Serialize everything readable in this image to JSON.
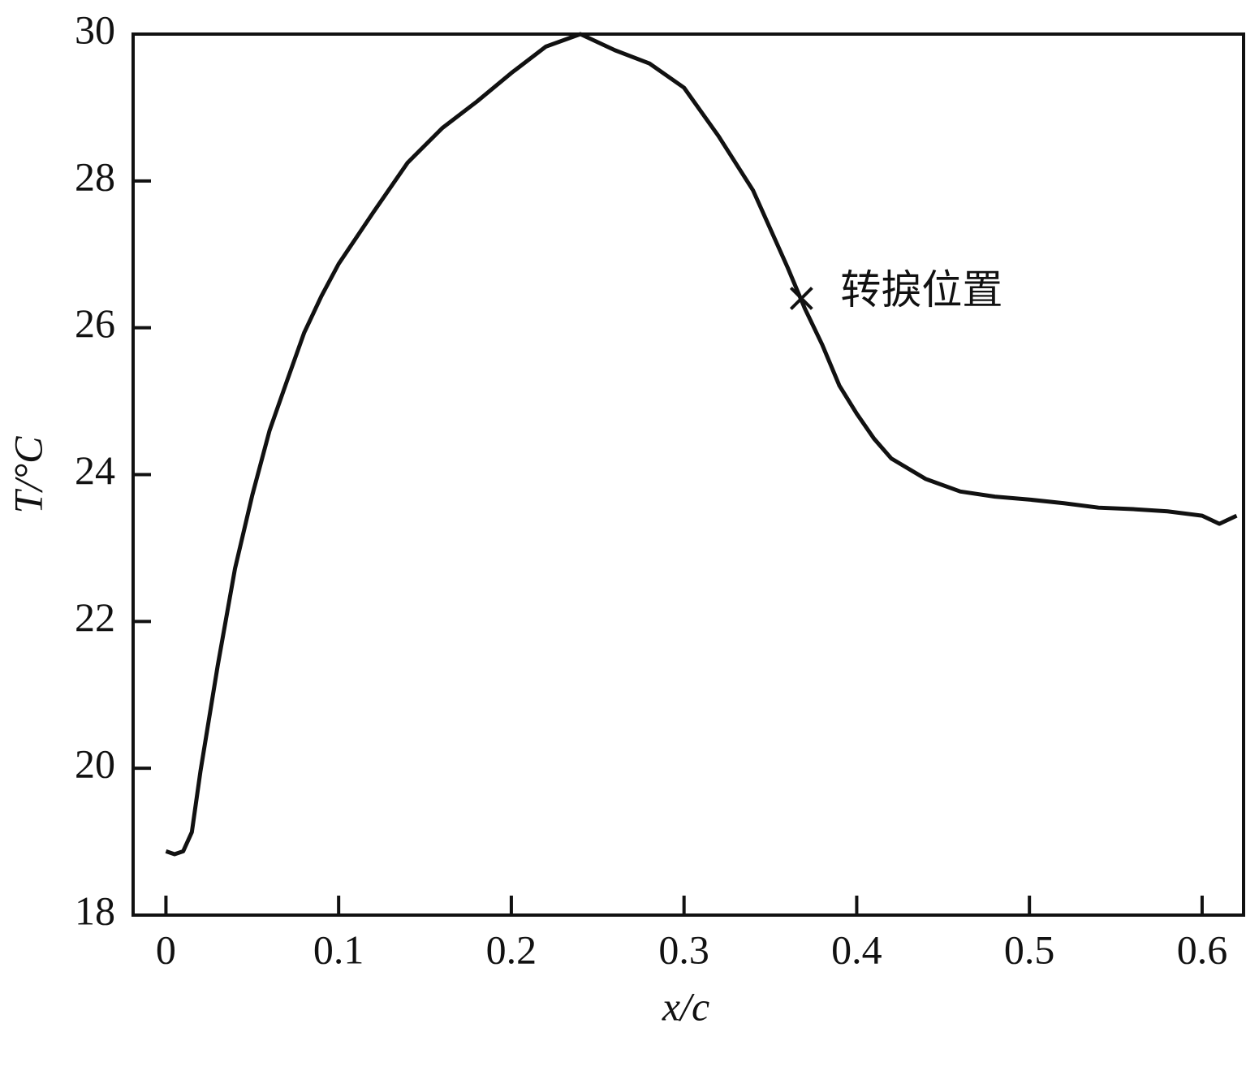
{
  "chart_data": {
    "type": "line",
    "xlabel": "x/c",
    "ylabel": "T/°C",
    "x": [
      0,
      0.005,
      0.01,
      0.015,
      0.02,
      0.03,
      0.04,
      0.05,
      0.06,
      0.07,
      0.08,
      0.09,
      0.1,
      0.12,
      0.14,
      0.16,
      0.18,
      0.2,
      0.22,
      0.24,
      0.26,
      0.28,
      0.3,
      0.32,
      0.34,
      0.36,
      0.37,
      0.38,
      0.39,
      0.4,
      0.41,
      0.42,
      0.44,
      0.46,
      0.48,
      0.5,
      0.52,
      0.54,
      0.56,
      0.58,
      0.6,
      0.61,
      0.62
    ],
    "values": [
      18.87,
      18.83,
      18.87,
      19.13,
      19.96,
      21.4,
      22.72,
      23.72,
      24.6,
      25.27,
      25.93,
      26.43,
      26.87,
      27.57,
      28.25,
      28.72,
      29.08,
      29.47,
      29.83,
      30,
      29.78,
      29.6,
      29.27,
      28.61,
      27.87,
      26.82,
      26.26,
      25.77,
      25.21,
      24.83,
      24.49,
      24.22,
      23.94,
      23.77,
      23.7,
      23.66,
      23.61,
      23.55,
      23.53,
      23.5,
      23.44,
      23.33,
      23.44
    ],
    "color": "#111111",
    "xlim": [
      -0.019,
      0.624
    ],
    "ylim": [
      18,
      30
    ],
    "xticks": [
      0,
      0.1,
      0.2,
      0.3,
      0.4,
      0.5,
      0.6
    ],
    "yticks": [
      18,
      20,
      22,
      24,
      26,
      28,
      30
    ],
    "annotation": {
      "text": "转捩位置",
      "x": 0.368,
      "y": 26.4
    }
  }
}
